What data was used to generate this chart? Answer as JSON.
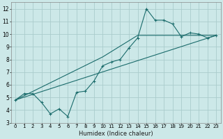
{
  "title": "",
  "xlabel": "Humidex (Indice chaleur)",
  "bg_color": "#cce8e8",
  "grid_color": "#aacccc",
  "line_color": "#1a6b6b",
  "xlim": [
    -0.5,
    23.5
  ],
  "ylim": [
    3,
    12.5
  ],
  "xticks": [
    0,
    1,
    2,
    3,
    4,
    5,
    6,
    7,
    8,
    9,
    10,
    11,
    12,
    13,
    14,
    15,
    16,
    17,
    18,
    19,
    20,
    21,
    22,
    23
  ],
  "yticks": [
    3,
    4,
    5,
    6,
    7,
    8,
    9,
    10,
    11,
    12
  ],
  "series1_x": [
    0,
    1,
    2,
    3,
    4,
    5,
    6,
    7,
    8,
    9,
    10,
    11,
    12,
    13,
    14,
    15,
    16,
    17,
    18,
    19,
    20,
    21,
    22,
    23
  ],
  "series1_y": [
    4.8,
    5.3,
    5.3,
    4.6,
    3.7,
    4.1,
    3.5,
    5.4,
    5.5,
    6.3,
    7.5,
    7.8,
    8.0,
    8.9,
    9.7,
    12.0,
    11.1,
    11.1,
    10.8,
    9.8,
    10.1,
    10.0,
    9.7,
    9.9
  ],
  "series2_x": [
    0,
    23
  ],
  "series2_y": [
    4.8,
    9.9
  ],
  "series3_x": [
    0,
    10,
    14,
    23
  ],
  "series3_y": [
    4.8,
    8.2,
    9.9,
    9.9
  ]
}
